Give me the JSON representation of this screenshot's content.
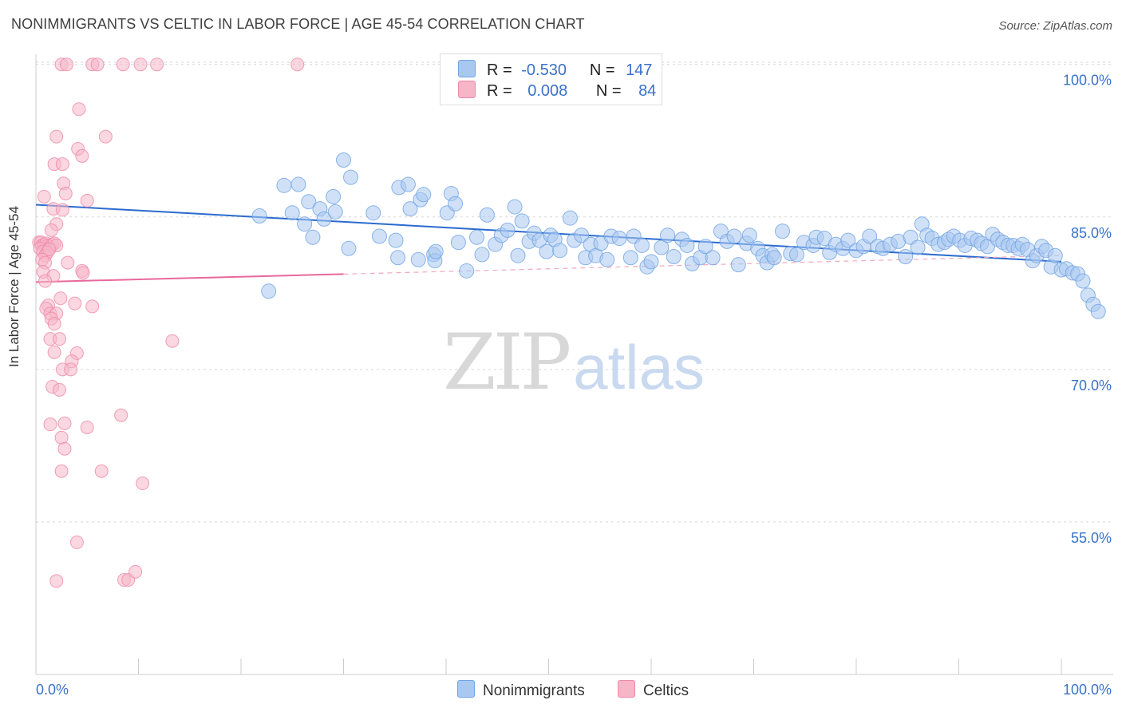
{
  "title": "NONIMMIGRANTS VS CELTIC IN LABOR FORCE | AGE 45-54 CORRELATION CHART",
  "source": "Source: ZipAtlas.com",
  "watermark": {
    "part1": "ZIP",
    "part2": "atlas"
  },
  "legend": {
    "rows": [
      {
        "r_label": "R =",
        "r_value": "-0.530",
        "n_label": "N =",
        "n_value": "147",
        "color": "#a9c8f0"
      },
      {
        "r_label": "R =",
        "r_value": "0.008",
        "n_label": "N =",
        "n_value": "84",
        "color": "#f6b6c8"
      }
    ]
  },
  "bottom_legend": [
    {
      "label": "Nonimmigrants",
      "color": "#a9c8f0"
    },
    {
      "label": "Celtics",
      "color": "#f6b6c8"
    }
  ],
  "chart_data": {
    "type": "scatter",
    "title": "NONIMMIGRANTS VS CELTIC IN LABOR FORCE | AGE 45-54 CORRELATION CHART",
    "xlabel": "",
    "ylabel": "In Labor Force | Age 45-54",
    "xlim": [
      0,
      100
    ],
    "ylim": [
      40,
      101
    ],
    "x_tick_labels": [
      "0.0%",
      "100.0%"
    ],
    "y_ticks": [
      55,
      70,
      85,
      100
    ],
    "y_tick_labels": [
      "55.0%",
      "70.0%",
      "85.0%",
      "100.0%"
    ],
    "grid": true,
    "legend_position": "top-center",
    "series": [
      {
        "name": "Nonimmigrants",
        "color": "#6fa3e3",
        "fill": "#a9c8f0",
        "trend": {
          "x": [
            0,
            100
          ],
          "y": [
            86.2,
            80.6
          ],
          "dashed_from": null
        },
        "points": [
          [
            21.8,
            85.1
          ],
          [
            22.7,
            77.7
          ],
          [
            24.2,
            88.1
          ],
          [
            25.0,
            85.4
          ],
          [
            25.6,
            88.2
          ],
          [
            26.2,
            84.3
          ],
          [
            26.6,
            86.5
          ],
          [
            27.0,
            83.0
          ],
          [
            27.7,
            85.8
          ],
          [
            28.1,
            84.8
          ],
          [
            29.0,
            87.0
          ],
          [
            29.2,
            85.5
          ],
          [
            30.5,
            81.9
          ],
          [
            30.0,
            90.6
          ],
          [
            30.7,
            88.9
          ],
          [
            32.9,
            85.4
          ],
          [
            33.5,
            83.1
          ],
          [
            35.1,
            82.7
          ],
          [
            35.3,
            81.0
          ],
          [
            35.4,
            87.9
          ],
          [
            36.3,
            88.2
          ],
          [
            36.5,
            85.8
          ],
          [
            37.3,
            80.8
          ],
          [
            37.5,
            86.7
          ],
          [
            37.8,
            87.2
          ],
          [
            38.8,
            81.3
          ],
          [
            38.9,
            80.7
          ],
          [
            39.0,
            81.6
          ],
          [
            40.1,
            85.4
          ],
          [
            40.5,
            87.3
          ],
          [
            40.9,
            86.3
          ],
          [
            41.2,
            82.5
          ],
          [
            42.0,
            79.7
          ],
          [
            43.0,
            83.0
          ],
          [
            43.5,
            81.3
          ],
          [
            44.0,
            85.2
          ],
          [
            44.8,
            82.3
          ],
          [
            45.4,
            83.2
          ],
          [
            46.0,
            83.7
          ],
          [
            46.7,
            86.0
          ],
          [
            47.0,
            81.2
          ],
          [
            47.4,
            84.6
          ],
          [
            48.1,
            82.6
          ],
          [
            48.6,
            83.4
          ],
          [
            49.1,
            82.7
          ],
          [
            49.8,
            81.6
          ],
          [
            50.2,
            83.2
          ],
          [
            50.6,
            82.8
          ],
          [
            51.1,
            81.7
          ],
          [
            52.1,
            84.9
          ],
          [
            52.5,
            82.7
          ],
          [
            53.2,
            83.2
          ],
          [
            53.6,
            81.0
          ],
          [
            54.1,
            82.3
          ],
          [
            54.6,
            81.2
          ],
          [
            55.1,
            82.4
          ],
          [
            55.7,
            80.8
          ],
          [
            56.1,
            83.1
          ],
          [
            56.9,
            82.9
          ],
          [
            58.0,
            81.0
          ],
          [
            58.3,
            83.1
          ],
          [
            59.1,
            82.2
          ],
          [
            59.6,
            80.1
          ],
          [
            60.0,
            80.6
          ],
          [
            61.0,
            82.0
          ],
          [
            61.6,
            83.2
          ],
          [
            62.2,
            81.1
          ],
          [
            63.0,
            82.8
          ],
          [
            63.5,
            82.2
          ],
          [
            64.0,
            80.4
          ],
          [
            64.8,
            81.0
          ],
          [
            65.3,
            82.1
          ],
          [
            66.0,
            81.0
          ],
          [
            66.8,
            83.6
          ],
          [
            67.4,
            82.6
          ],
          [
            68.1,
            83.1
          ],
          [
            68.5,
            80.3
          ],
          [
            69.3,
            82.4
          ],
          [
            69.6,
            83.2
          ],
          [
            70.4,
            81.9
          ],
          [
            70.9,
            81.2
          ],
          [
            71.3,
            80.5
          ],
          [
            71.8,
            81.3
          ],
          [
            72.0,
            81.0
          ],
          [
            72.8,
            83.6
          ],
          [
            73.6,
            81.4
          ],
          [
            74.2,
            81.3
          ],
          [
            74.9,
            82.5
          ],
          [
            75.8,
            82.2
          ],
          [
            76.1,
            83.0
          ],
          [
            76.9,
            82.9
          ],
          [
            77.4,
            81.5
          ],
          [
            78.0,
            82.3
          ],
          [
            78.7,
            81.9
          ],
          [
            79.2,
            82.7
          ],
          [
            80.0,
            81.7
          ],
          [
            80.7,
            82.1
          ],
          [
            81.3,
            83.1
          ],
          [
            82.1,
            82.1
          ],
          [
            82.6,
            81.9
          ],
          [
            83.3,
            82.3
          ],
          [
            84.1,
            82.6
          ],
          [
            84.8,
            81.1
          ],
          [
            85.3,
            83.0
          ],
          [
            86.0,
            82.0
          ],
          [
            86.4,
            84.3
          ],
          [
            86.9,
            83.2
          ],
          [
            87.4,
            82.9
          ],
          [
            88.0,
            82.3
          ],
          [
            88.6,
            82.5
          ],
          [
            89.0,
            82.8
          ],
          [
            89.5,
            83.1
          ],
          [
            90.1,
            82.7
          ],
          [
            90.6,
            82.2
          ],
          [
            91.2,
            82.9
          ],
          [
            91.8,
            82.7
          ],
          [
            92.2,
            82.4
          ],
          [
            92.8,
            82.1
          ],
          [
            93.3,
            83.3
          ],
          [
            93.8,
            82.8
          ],
          [
            94.3,
            82.5
          ],
          [
            94.8,
            82.2
          ],
          [
            95.3,
            82.2
          ],
          [
            95.8,
            81.9
          ],
          [
            96.2,
            82.3
          ],
          [
            96.7,
            81.8
          ],
          [
            97.2,
            80.7
          ],
          [
            97.6,
            81.2
          ],
          [
            98.1,
            82.1
          ],
          [
            98.5,
            81.7
          ],
          [
            99.0,
            80.1
          ],
          [
            99.4,
            81.2
          ],
          [
            100.0,
            79.8
          ],
          [
            100.5,
            79.9
          ],
          [
            101.1,
            79.5
          ],
          [
            101.6,
            79.4
          ],
          [
            102.1,
            78.7
          ],
          [
            102.6,
            77.3
          ],
          [
            103.1,
            76.4
          ],
          [
            103.6,
            75.7
          ]
        ]
      },
      {
        "name": "Celtics",
        "color": "#ee88a8",
        "fill": "#f6b6c8",
        "trend": {
          "x": [
            0,
            100
          ],
          "y": [
            78.6,
            81.2
          ],
          "dashed_from": 30
        },
        "points": [
          [
            2.5,
            100
          ],
          [
            3.0,
            100
          ],
          [
            5.5,
            100
          ],
          [
            6.0,
            100
          ],
          [
            8.5,
            100
          ],
          [
            10.2,
            100
          ],
          [
            11.8,
            100
          ],
          [
            25.5,
            100
          ],
          [
            4.2,
            95.6
          ],
          [
            2.0,
            92.9
          ],
          [
            6.8,
            92.9
          ],
          [
            4.1,
            91.7
          ],
          [
            4.5,
            91.0
          ],
          [
            1.8,
            90.2
          ],
          [
            2.6,
            90.2
          ],
          [
            2.7,
            88.3
          ],
          [
            0.8,
            87.0
          ],
          [
            2.9,
            87.3
          ],
          [
            5.0,
            86.6
          ],
          [
            1.7,
            85.8
          ],
          [
            2.6,
            85.7
          ],
          [
            2.0,
            84.3
          ],
          [
            1.5,
            83.7
          ],
          [
            0.3,
            82.5
          ],
          [
            0.5,
            82.5
          ],
          [
            0.6,
            82.2
          ],
          [
            0.8,
            82.3
          ],
          [
            1.0,
            82.4
          ],
          [
            1.2,
            82.2
          ],
          [
            1.4,
            82.0
          ],
          [
            1.6,
            82.3
          ],
          [
            1.8,
            82.4
          ],
          [
            2.0,
            82.2
          ],
          [
            0.4,
            81.9
          ],
          [
            0.7,
            81.6
          ],
          [
            0.9,
            81.2
          ],
          [
            1.1,
            81.5
          ],
          [
            1.3,
            81.8
          ],
          [
            0.6,
            80.8
          ],
          [
            0.9,
            80.5
          ],
          [
            3.1,
            80.5
          ],
          [
            0.7,
            79.6
          ],
          [
            1.7,
            79.2
          ],
          [
            0.9,
            78.7
          ],
          [
            4.5,
            79.7
          ],
          [
            4.6,
            79.5
          ],
          [
            2.4,
            77.0
          ],
          [
            1.2,
            76.3
          ],
          [
            3.8,
            76.5
          ],
          [
            5.5,
            76.2
          ],
          [
            1.0,
            76.0
          ],
          [
            1.4,
            75.5
          ],
          [
            2.0,
            75.5
          ],
          [
            1.5,
            75.0
          ],
          [
            1.8,
            74.5
          ],
          [
            1.4,
            73.0
          ],
          [
            2.3,
            73.0
          ],
          [
            13.3,
            72.8
          ],
          [
            1.8,
            71.7
          ],
          [
            4.0,
            71.6
          ],
          [
            3.5,
            70.8
          ],
          [
            2.6,
            70.0
          ],
          [
            3.4,
            70.0
          ],
          [
            1.6,
            68.3
          ],
          [
            2.3,
            68.0
          ],
          [
            8.3,
            65.5
          ],
          [
            1.4,
            64.6
          ],
          [
            2.8,
            64.7
          ],
          [
            5.0,
            64.3
          ],
          [
            2.5,
            63.3
          ],
          [
            2.8,
            62.2
          ],
          [
            2.5,
            60.0
          ],
          [
            6.4,
            60.0
          ],
          [
            10.4,
            58.8
          ],
          [
            4.0,
            53.0
          ],
          [
            2.0,
            49.2
          ],
          [
            8.6,
            49.3
          ],
          [
            9.0,
            49.3
          ],
          [
            9.7,
            50.1
          ]
        ]
      }
    ]
  }
}
